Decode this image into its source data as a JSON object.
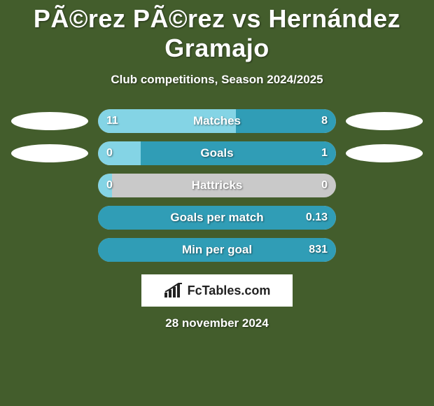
{
  "colors": {
    "card_bg": "#435d2c",
    "text": "#ffffff",
    "brand_text": "#222222",
    "brand_bg": "#ffffff",
    "avatar_fill": "#ffffff",
    "bar_bg": "#c9c9c9",
    "bar_left": "#84d4e5",
    "bar_right": "#309db6"
  },
  "title": "PÃ©rez PÃ©rez vs Hernández Gramajo",
  "subtitle": "Club competitions, Season 2024/2025",
  "brand": "FcTables.com",
  "date": "28 november 2024",
  "stats": [
    {
      "label": "Matches",
      "left_value": "11",
      "right_value": "8",
      "left_pct": 58,
      "right_pct": 42,
      "show_avatars": true
    },
    {
      "label": "Goals",
      "left_value": "0",
      "right_value": "1",
      "left_pct": 18,
      "right_pct": 82,
      "show_avatars": true
    },
    {
      "label": "Hattricks",
      "left_value": "0",
      "right_value": "0",
      "left_pct": 6,
      "right_pct": 0,
      "show_avatars": false
    },
    {
      "label": "Goals per match",
      "left_value": "",
      "right_value": "0.13",
      "left_pct": 0,
      "right_pct": 100,
      "show_avatars": false
    },
    {
      "label": "Min per goal",
      "left_value": "",
      "right_value": "831",
      "left_pct": 0,
      "right_pct": 100,
      "show_avatars": false
    }
  ]
}
